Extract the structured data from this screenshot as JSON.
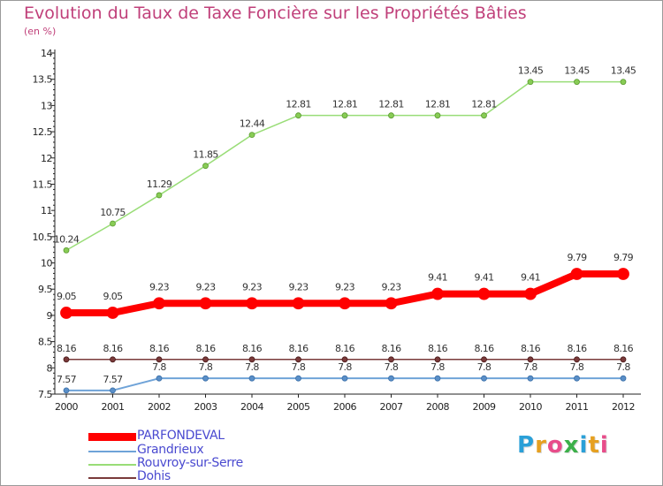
{
  "chart_data": {
    "type": "line",
    "title": "Evolution du Taux de Taxe Foncière sur les Propriétés Bâties",
    "subtitle": "(en %)",
    "xlabel": "",
    "ylabel": "",
    "ylim": [
      7.5,
      14
    ],
    "yticks": [
      "7.5",
      "8",
      "8.5",
      "9",
      "9.5",
      "10",
      "10.5",
      "11",
      "11.5",
      "12",
      "12.5",
      "13",
      "13.5",
      "14"
    ],
    "x": [
      "2000",
      "2001",
      "2002",
      "2003",
      "2004",
      "2005",
      "2006",
      "2007",
      "2008",
      "2009",
      "2010",
      "2011",
      "2012"
    ],
    "grid": false,
    "series": [
      {
        "name": "PARFONDEVAL",
        "color": "#ff0000",
        "values": [
          9.05,
          9.05,
          9.23,
          9.23,
          9.23,
          9.23,
          9.23,
          9.23,
          9.41,
          9.41,
          9.41,
          9.79,
          9.79
        ],
        "labels": [
          "9.05",
          "9.05",
          "9.23",
          "9.23",
          "9.23",
          "9.23",
          "9.23",
          "9.23",
          "9.41",
          "9.41",
          "9.41",
          "9.79",
          "9.79"
        ]
      },
      {
        "name": "Grandrieux",
        "color": "#6fa3d8",
        "values": [
          7.57,
          7.57,
          7.8,
          7.8,
          7.8,
          7.8,
          7.8,
          7.8,
          7.8,
          7.8,
          7.8,
          7.8,
          7.8
        ],
        "labels": [
          "7.57",
          "7.57",
          "7.8",
          "7.8",
          "7.8",
          "7.8",
          "7.8",
          "7.8",
          "7.8",
          "7.8",
          "7.8",
          "7.8",
          "7.8"
        ]
      },
      {
        "name": "Rouvroy-sur-Serre",
        "color": "#99dd77",
        "values": [
          10.24,
          10.75,
          11.29,
          11.85,
          12.44,
          12.81,
          12.81,
          12.81,
          12.81,
          12.81,
          13.45,
          13.45,
          13.45
        ],
        "labels": [
          "10.24",
          "10.75",
          "11.29",
          "11.85",
          "12.44",
          "12.81",
          "12.81",
          "12.81",
          "12.81",
          "12.81",
          "13.45",
          "13.45",
          "13.45"
        ]
      },
      {
        "name": "Dohis",
        "color": "#7a3a3a",
        "values": [
          8.16,
          8.16,
          8.16,
          8.16,
          8.16,
          8.16,
          8.16,
          8.16,
          8.16,
          8.16,
          8.16,
          8.16,
          8.16
        ],
        "labels": [
          "8.16",
          "8.16",
          "8.16",
          "8.16",
          "8.16",
          "8.16",
          "8.16",
          "8.16",
          "8.16",
          "8.16",
          "8.16",
          "8.16",
          "8.16"
        ]
      }
    ]
  },
  "legend": {
    "items": [
      {
        "label": "PARFONDEVAL",
        "color": "#ff0000"
      },
      {
        "label": "Grandrieux",
        "color": "#6fa3d8"
      },
      {
        "label": "Rouvroy-sur-Serre",
        "color": "#99dd77"
      },
      {
        "label": "Dohis",
        "color": "#7a3a3a"
      }
    ]
  },
  "logo": {
    "text": "Proxiti",
    "colors": [
      "#2aa0d8",
      "#e6a020",
      "#e84c8a",
      "#3cb04a",
      "#2aa0d8",
      "#e6a020",
      "#e84c8a"
    ]
  }
}
